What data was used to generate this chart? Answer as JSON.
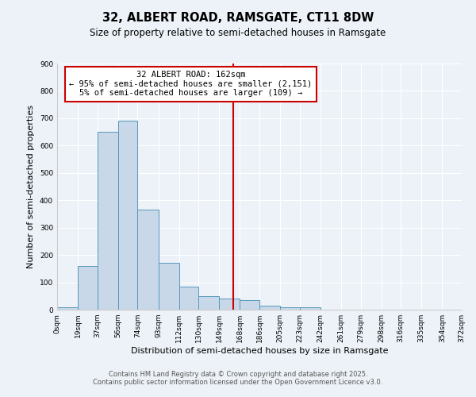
{
  "title": "32, ALBERT ROAD, RAMSGATE, CT11 8DW",
  "subtitle": "Size of property relative to semi-detached houses in Ramsgate",
  "xlabel": "Distribution of semi-detached houses by size in Ramsgate",
  "ylabel": "Number of semi-detached properties",
  "bar_color": "#c8d8e8",
  "bar_edge_color": "#5599bb",
  "background_color": "#edf2f8",
  "grid_color": "#ffffff",
  "vline_x": 162,
  "vline_color": "#cc0000",
  "bin_edges": [
    0,
    19,
    37,
    56,
    74,
    93,
    112,
    130,
    149,
    168,
    186,
    205,
    223,
    242,
    261,
    279,
    298,
    316,
    335,
    354,
    372
  ],
  "bar_heights": [
    8,
    160,
    650,
    690,
    365,
    170,
    85,
    50,
    42,
    35,
    15,
    10,
    8,
    0,
    0,
    0,
    0,
    0,
    0,
    0
  ],
  "ylim": [
    0,
    900
  ],
  "yticks": [
    0,
    100,
    200,
    300,
    400,
    500,
    600,
    700,
    800,
    900
  ],
  "annotation_title": "32 ALBERT ROAD: 162sqm",
  "annotation_line1": "← 95% of semi-detached houses are smaller (2,151)",
  "annotation_line2": "5% of semi-detached houses are larger (109) →",
  "annotation_box_color": "#ffffff",
  "annotation_border_color": "#cc0000",
  "footnote1": "Contains HM Land Registry data © Crown copyright and database right 2025.",
  "footnote2": "Contains public sector information licensed under the Open Government Licence v3.0.",
  "title_fontsize": 10.5,
  "subtitle_fontsize": 8.5,
  "axis_label_fontsize": 8,
  "tick_fontsize": 6.5,
  "annotation_fontsize": 7.5,
  "footnote_fontsize": 6
}
